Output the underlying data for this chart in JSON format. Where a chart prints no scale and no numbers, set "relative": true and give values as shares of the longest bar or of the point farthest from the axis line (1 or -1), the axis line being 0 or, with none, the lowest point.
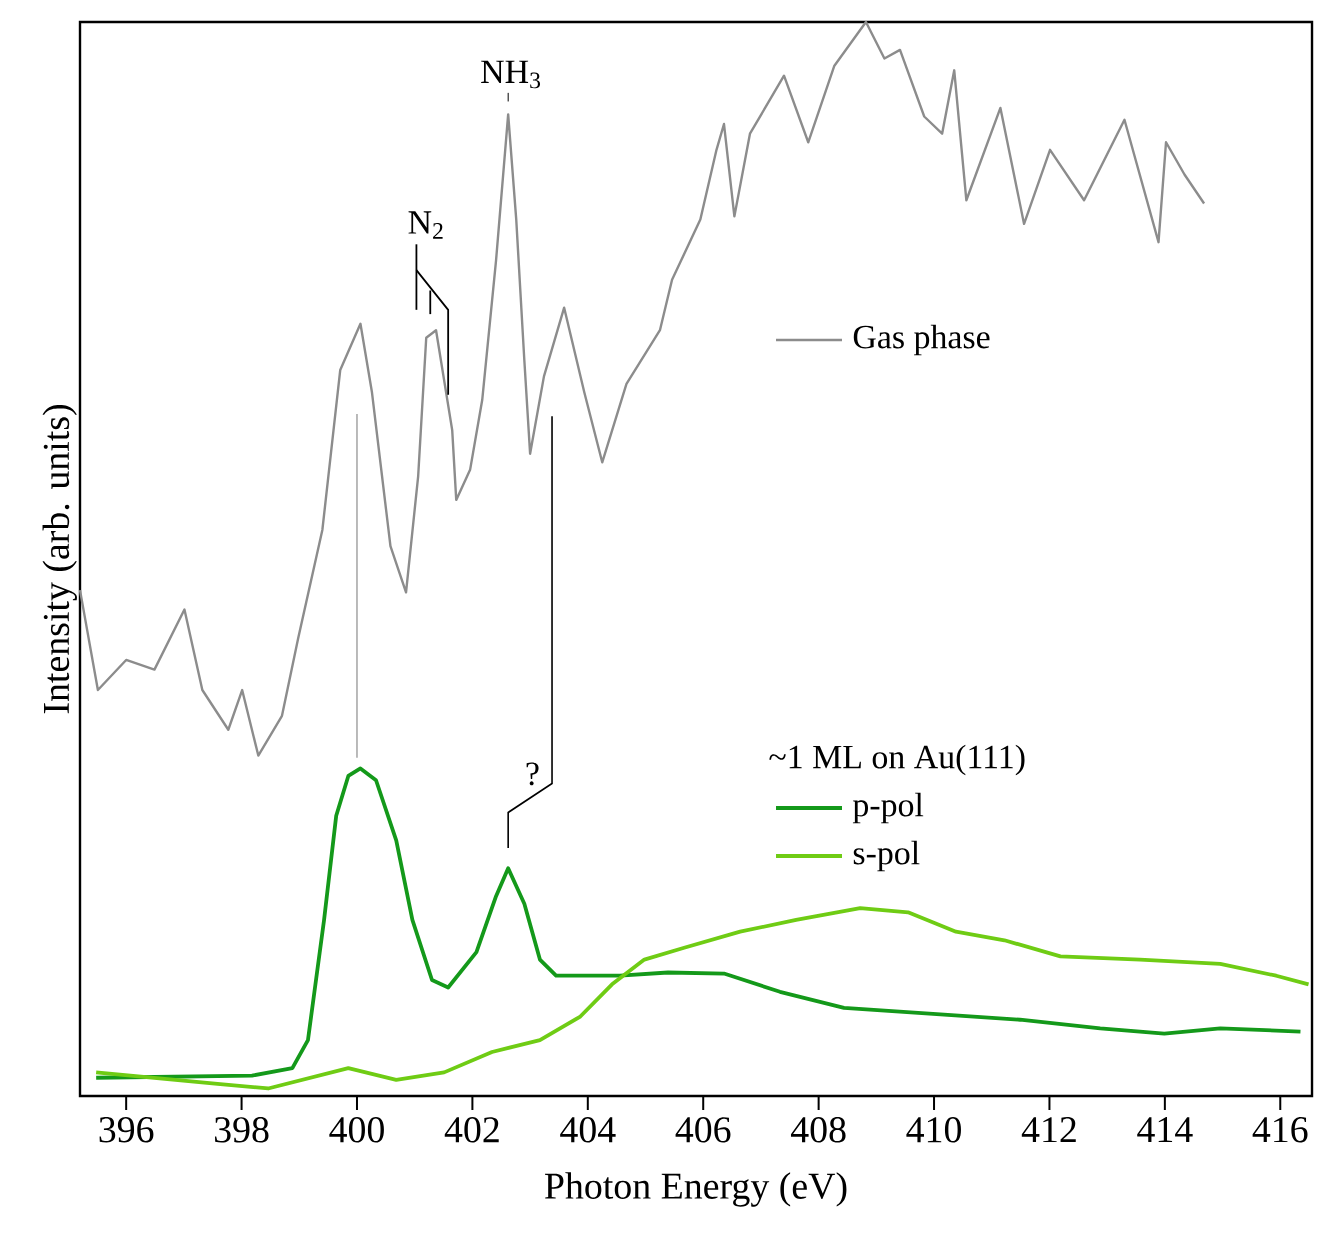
{
  "chart_data": {
    "type": "line",
    "relative": true,
    "xlabel": "Photon Energy (eV)",
    "ylabel": "Intensity (arb. units)",
    "xlim": [
      395.2,
      416.55
    ],
    "xticks": [
      396,
      398,
      400,
      402,
      404,
      406,
      408,
      410,
      412,
      414,
      416
    ],
    "legend": "right",
    "legend_title": "~1 ML on Au(111)",
    "grid": false,
    "line_style": "solid",
    "marker": "none",
    "annotations": [
      "NH$_{3}$",
      "N$_{2}$",
      "?"
    ],
    "series": [
      {
        "name": "Gas phase",
        "color": "#8c8c8c",
        "x": [
          395.2,
          395.51,
          396.0,
          396.49,
          397.01,
          397.32,
          397.77,
          398.01,
          398.29,
          398.7,
          398.98,
          399.4,
          399.71,
          400.06,
          400.26,
          400.58,
          400.85,
          401.06,
          401.2,
          401.37,
          401.65,
          401.72,
          401.96,
          402.17,
          402.41,
          402.62,
          402.76,
          402.9,
          403.0,
          403.24,
          403.59,
          403.94,
          404.25,
          404.67,
          405.25,
          405.46,
          405.95,
          406.23,
          406.36,
          406.54,
          406.81,
          407.4,
          407.82,
          408.27,
          408.82,
          409.14,
          409.41,
          409.83,
          410.14,
          410.35,
          410.56,
          411.15,
          411.56,
          412.01,
          412.6,
          413.3,
          413.89,
          414.02,
          414.34,
          414.68
        ],
        "values": [
          0.471,
          0.378,
          0.406,
          0.397,
          0.453,
          0.378,
          0.341,
          0.378,
          0.317,
          0.354,
          0.426,
          0.527,
          0.676,
          0.719,
          0.655,
          0.512,
          0.469,
          0.577,
          0.706,
          0.713,
          0.62,
          0.555,
          0.583,
          0.648,
          0.778,
          0.914,
          0.816,
          0.685,
          0.598,
          0.67,
          0.734,
          0.655,
          0.59,
          0.663,
          0.713,
          0.76,
          0.816,
          0.881,
          0.905,
          0.819,
          0.896,
          0.95,
          0.888,
          0.959,
          1.0,
          0.966,
          0.974,
          0.912,
          0.896,
          0.955,
          0.834,
          0.92,
          0.812,
          0.881,
          0.834,
          0.909,
          0.795,
          0.888,
          0.858,
          0.831
        ]
      },
      {
        "name": "p-pol",
        "color": "#14991a",
        "x": [
          395.48,
          398.18,
          398.88,
          399.15,
          399.43,
          399.64,
          399.85,
          400.06,
          400.33,
          400.68,
          400.96,
          401.3,
          401.58,
          402.07,
          402.41,
          402.62,
          402.9,
          403.17,
          403.45,
          404.56,
          405.39,
          406.36,
          407.33,
          408.44,
          410.11,
          411.49,
          412.88,
          413.99,
          414.96,
          416.35
        ],
        "values": [
          0.017,
          0.019,
          0.026,
          0.052,
          0.164,
          0.261,
          0.298,
          0.305,
          0.294,
          0.238,
          0.164,
          0.108,
          0.101,
          0.134,
          0.186,
          0.212,
          0.179,
          0.127,
          0.112,
          0.112,
          0.115,
          0.114,
          0.097,
          0.082,
          0.076,
          0.071,
          0.063,
          0.058,
          0.063,
          0.06
        ]
      },
      {
        "name": "s-pol",
        "color": "#6fcc14",
        "x": [
          395.48,
          397.63,
          398.46,
          399.85,
          400.68,
          401.51,
          402.34,
          403.17,
          403.87,
          404.42,
          404.98,
          405.67,
          406.64,
          407.61,
          408.72,
          409.55,
          410.38,
          411.22,
          412.19,
          413.57,
          414.96,
          415.93,
          416.49
        ],
        "values": [
          0.022,
          0.011,
          0.007,
          0.026,
          0.015,
          0.022,
          0.041,
          0.052,
          0.074,
          0.104,
          0.127,
          0.138,
          0.153,
          0.164,
          0.175,
          0.171,
          0.153,
          0.145,
          0.13,
          0.127,
          0.123,
          0.112,
          0.104
        ]
      }
    ]
  }
}
